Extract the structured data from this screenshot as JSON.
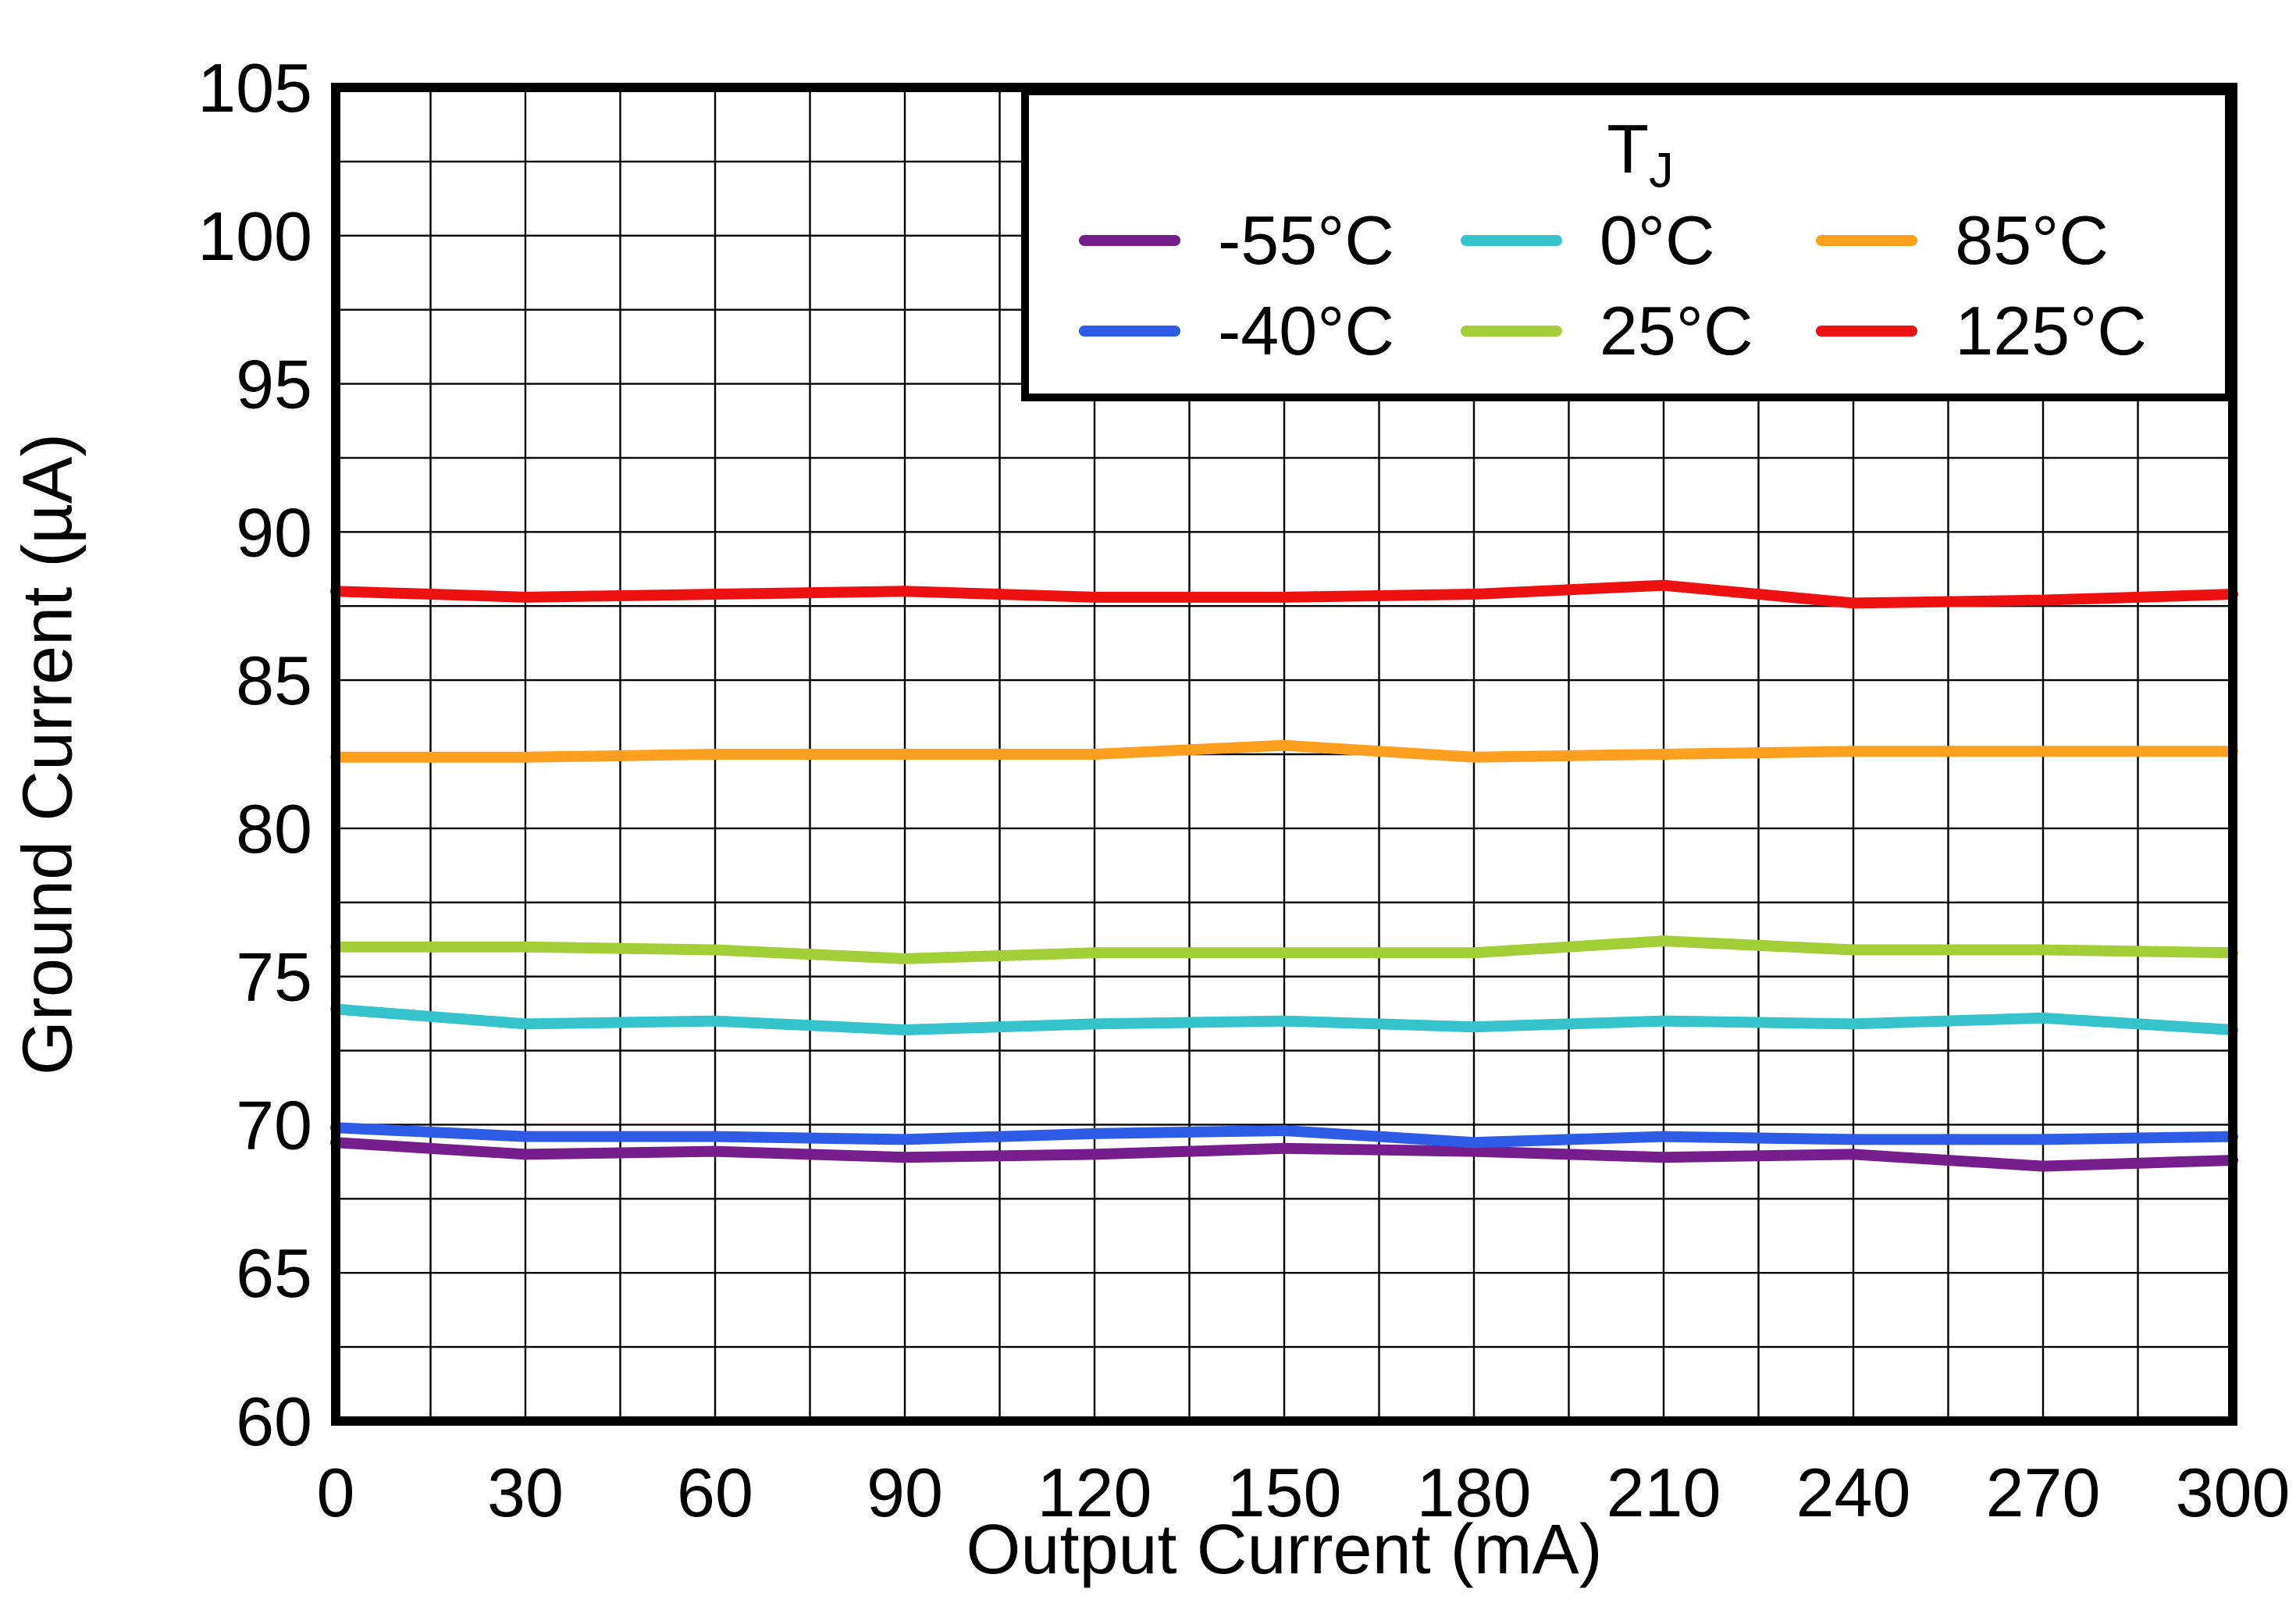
{
  "chart_data": {
    "type": "line",
    "title": "",
    "xlabel": "Output Current (mA)",
    "ylabel": "Ground Current (µA)",
    "xlim": [
      0,
      300
    ],
    "ylim": [
      60,
      105
    ],
    "x_major_step": 30,
    "x_minor_step": 15,
    "y_major_step": 5,
    "y_minor_step": 2.5,
    "grid": true,
    "legend_title_main": "T",
    "legend_title_sub": "J",
    "legend_position": "top-right",
    "legend_rows": [
      [
        0,
        2,
        4
      ],
      [
        1,
        3,
        5
      ]
    ],
    "x": [
      0,
      30,
      60,
      90,
      120,
      150,
      180,
      210,
      240,
      270,
      300
    ],
    "series": [
      {
        "name": "-55°C",
        "color": "#761F8C",
        "values": [
          69.4,
          69.0,
          69.1,
          68.9,
          69.0,
          69.2,
          69.1,
          68.9,
          69.0,
          68.6,
          68.8
        ]
      },
      {
        "name": "-40°C",
        "color": "#2E5CE6",
        "values": [
          69.9,
          69.6,
          69.6,
          69.5,
          69.7,
          69.8,
          69.4,
          69.6,
          69.5,
          69.5,
          69.6
        ]
      },
      {
        "name": "0°C",
        "color": "#35C3CC",
        "values": [
          73.9,
          73.4,
          73.5,
          73.2,
          73.4,
          73.5,
          73.3,
          73.5,
          73.4,
          73.6,
          73.2
        ]
      },
      {
        "name": "25°C",
        "color": "#A3CE38",
        "values": [
          76.0,
          76.0,
          75.9,
          75.6,
          75.8,
          75.8,
          75.8,
          76.2,
          75.9,
          75.9,
          75.8
        ]
      },
      {
        "name": "85°C",
        "color": "#FF9F20",
        "values": [
          82.4,
          82.4,
          82.5,
          82.5,
          82.5,
          82.8,
          82.4,
          82.5,
          82.6,
          82.6,
          82.6
        ]
      },
      {
        "name": "125°C",
        "color": "#EE1111",
        "values": [
          88.0,
          87.8,
          87.9,
          88.0,
          87.8,
          87.8,
          87.9,
          88.2,
          87.6,
          87.7,
          87.9
        ]
      }
    ]
  }
}
